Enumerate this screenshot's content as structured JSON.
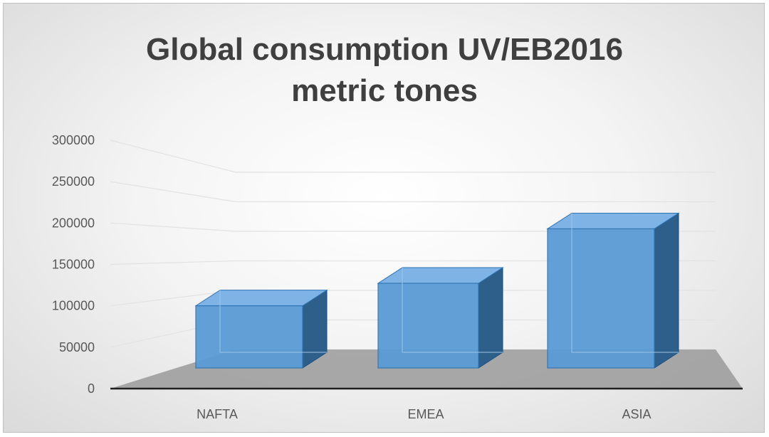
{
  "chart_data": {
    "type": "bar",
    "style": "3d-column",
    "title_lines": [
      "Global consumption UV/EB2016",
      "metric tones"
    ],
    "categories": [
      "NAFTA",
      "EMEA",
      "ASIA"
    ],
    "values": [
      105000,
      143000,
      235000
    ],
    "ylim": [
      0,
      300000
    ],
    "yticks": [
      "0",
      "50000",
      "100000",
      "150000",
      "200000",
      "250000",
      "300000"
    ],
    "xlabel": "",
    "ylabel": "",
    "grid": true,
    "legend": "none",
    "colors": {
      "bar_front": "#5b9bd5",
      "bar_side": "#2e5f8a",
      "bar_top": "#7fb3e6",
      "floor": "#9a9a9a",
      "title": "#3f3f3f"
    }
  }
}
